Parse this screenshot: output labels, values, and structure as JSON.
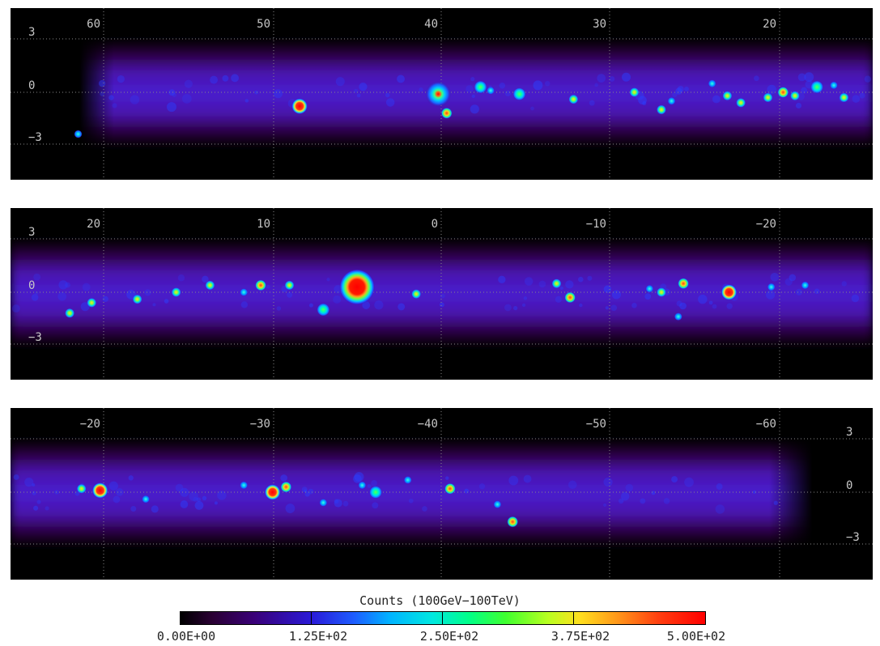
{
  "panels": [
    {
      "x_ticks": [
        "60",
        "50",
        "40",
        "30",
        "20"
      ],
      "y_ticks": [
        "3",
        "0",
        "−3"
      ],
      "y_label_side": "left",
      "sources": [
        {
          "l": 47.9,
          "b": -0.8,
          "type": "red"
        },
        {
          "l": 39.7,
          "b": -0.1,
          "type": "red-halo"
        },
        {
          "l": 34.9,
          "b": -0.1,
          "type": "green"
        },
        {
          "l": 39.2,
          "b": -1.2,
          "type": "orange"
        },
        {
          "l": 28.1,
          "b": 0.0,
          "type": "yellow"
        },
        {
          "l": 22.6,
          "b": -0.2,
          "type": "yellow"
        },
        {
          "l": 21.8,
          "b": -0.6,
          "type": "yellow"
        },
        {
          "l": 19.3,
          "b": 0.0,
          "type": "orange"
        },
        {
          "l": 18.6,
          "b": -0.2,
          "type": "yellow"
        },
        {
          "l": 17.3,
          "b": 0.3,
          "type": "green"
        },
        {
          "l": 16.3,
          "b": 0.4,
          "type": "cyan"
        },
        {
          "l": 15.7,
          "b": -0.3,
          "type": "yellow"
        },
        {
          "l": 61.0,
          "b": -2.4,
          "type": "cyan"
        },
        {
          "l": 37.2,
          "b": 0.3,
          "type": "green"
        },
        {
          "l": 36.6,
          "b": 0.1,
          "type": "cyan"
        },
        {
          "l": 31.7,
          "b": -0.4,
          "type": "yellow"
        },
        {
          "l": 26.5,
          "b": -1.0,
          "type": "yellow"
        },
        {
          "l": 25.9,
          "b": -0.5,
          "type": "cyan"
        },
        {
          "l": 20.2,
          "b": -0.3,
          "type": "yellow"
        },
        {
          "l": 23.5,
          "b": 0.5,
          "type": "cyan"
        }
      ]
    },
    {
      "x_ticks": [
        "20",
        "10",
        "0",
        "−10",
        "−20"
      ],
      "y_ticks": [
        "3",
        "0",
        "−3"
      ],
      "y_label_side": "left",
      "sources": [
        {
          "l": 4.5,
          "b": 0.3,
          "type": "red-big"
        },
        {
          "l": 6.5,
          "b": -1.0,
          "type": "green"
        },
        {
          "l": 10.2,
          "b": 0.4,
          "type": "orange"
        },
        {
          "l": 8.5,
          "b": 0.4,
          "type": "yellow"
        },
        {
          "l": 15.2,
          "b": 0.0,
          "type": "yellow"
        },
        {
          "l": 13.2,
          "b": 0.4,
          "type": "yellow"
        },
        {
          "l": 11.2,
          "b": 0.0,
          "type": "cyan"
        },
        {
          "l": 20.2,
          "b": -0.6,
          "type": "yellow"
        },
        {
          "l": 21.5,
          "b": -1.2,
          "type": "yellow"
        },
        {
          "l": 17.5,
          "b": -0.4,
          "type": "yellow"
        },
        {
          "l": 1.0,
          "b": -0.1,
          "type": "yellow"
        },
        {
          "l": -8.1,
          "b": -0.3,
          "type": "orange"
        },
        {
          "l": -7.3,
          "b": 0.5,
          "type": "yellow"
        },
        {
          "l": -12.8,
          "b": 0.2,
          "type": "cyan"
        },
        {
          "l": -13.5,
          "b": 0.0,
          "type": "yellow"
        },
        {
          "l": -14.8,
          "b": 0.5,
          "type": "orange"
        },
        {
          "l": -17.5,
          "b": 0.0,
          "type": "red"
        },
        {
          "l": -20.0,
          "b": 0.3,
          "type": "cyan"
        },
        {
          "l": -22.0,
          "b": 0.4,
          "type": "cyan"
        },
        {
          "l": -14.5,
          "b": -1.4,
          "type": "cyan"
        }
      ]
    },
    {
      "x_ticks": [
        "−20",
        "−30",
        "−40",
        "−50",
        "−60"
      ],
      "y_ticks": [
        "3",
        "0",
        "−3"
      ],
      "y_label_side": "right",
      "sources": [
        {
          "l": -19.3,
          "b": 0.1,
          "type": "red"
        },
        {
          "l": -18.2,
          "b": 0.2,
          "type": "yellow"
        },
        {
          "l": -29.5,
          "b": 0.0,
          "type": "red"
        },
        {
          "l": -30.3,
          "b": 0.3,
          "type": "orange"
        },
        {
          "l": -35.6,
          "b": 0.0,
          "type": "green"
        },
        {
          "l": -34.8,
          "b": 0.4,
          "type": "cyan"
        },
        {
          "l": -40.0,
          "b": 0.2,
          "type": "orange"
        },
        {
          "l": -43.7,
          "b": -1.7,
          "type": "orange"
        },
        {
          "l": -27.8,
          "b": 0.4,
          "type": "cyan"
        },
        {
          "l": -42.8,
          "b": -0.7,
          "type": "cyan"
        },
        {
          "l": -37.5,
          "b": 0.7,
          "type": "cyan"
        },
        {
          "l": -22.0,
          "b": -0.4,
          "type": "cyan"
        },
        {
          "l": -32.5,
          "b": -0.6,
          "type": "cyan"
        }
      ]
    }
  ],
  "colorbar": {
    "title": "Counts (100GeV−100TeV)",
    "ticks": [
      "0.00E+00",
      "1.25E+02",
      "2.50E+02",
      "3.75E+02",
      "5.00E+02"
    ]
  }
}
